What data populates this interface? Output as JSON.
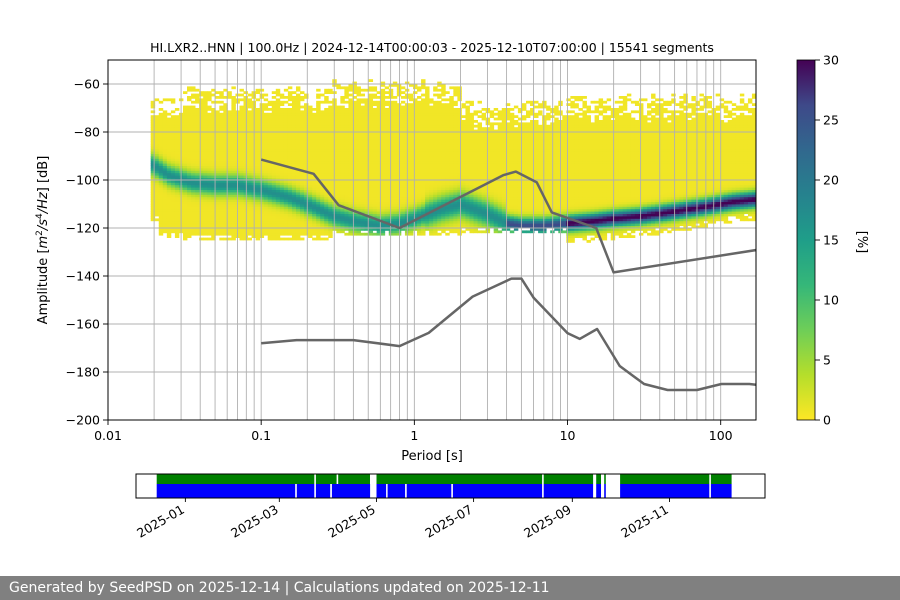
{
  "chart_data": [
    {
      "type": "heatmap",
      "title": "HI.LXR2..HNN | 100.0Hz | 2024-12-14T00:00:03 - 2025-12-10T07:00:00 | 15541 segments",
      "xlabel": "Period [s]",
      "ylabel_parts": [
        "Amplitude [",
        "m",
        "2",
        "/s",
        "4",
        "/Hz",
        "] [dB]"
      ],
      "x_scale": "log",
      "xlim": [
        0.01,
        170
      ],
      "ylim": [
        -200,
        -50
      ],
      "xticks": [
        {
          "value": 0.01,
          "label": "0.01"
        },
        {
          "value": 0.1,
          "label": "0.1"
        },
        {
          "value": 1,
          "label": "1"
        },
        {
          "value": 10,
          "label": "10"
        },
        {
          "value": 100,
          "label": "100"
        }
      ],
      "yticks": [
        -60,
        -80,
        -100,
        -120,
        -140,
        -160,
        -180,
        -200
      ],
      "vertical_grid_periods": [
        0.02,
        0.03,
        0.04,
        0.05,
        0.06,
        0.07,
        0.08,
        0.09,
        0.1,
        0.2,
        0.3,
        0.4,
        0.5,
        0.6,
        0.7,
        0.8,
        0.9,
        1,
        2,
        3,
        4,
        5,
        6,
        7,
        8,
        9,
        10,
        20,
        30,
        40,
        50,
        60,
        70,
        80,
        90,
        100
      ],
      "horizontal_grid_db": [
        -60,
        -80,
        -100,
        -120,
        -140,
        -160,
        -180
      ],
      "grid": true,
      "colormap": "viridis_r",
      "colorbar": {
        "min": 0,
        "max": 30,
        "ticks": [
          0,
          5,
          10,
          15,
          20,
          25,
          30
        ],
        "label": "[%]"
      },
      "psd_mode": {
        "period": [
          0.019,
          0.025,
          0.035,
          0.05,
          0.07,
          0.1,
          0.15,
          0.2,
          0.3,
          0.4,
          0.6,
          0.8,
          1.0,
          1.5,
          2,
          3,
          4,
          5,
          7,
          10,
          15,
          20,
          30,
          50,
          80,
          120,
          170
        ],
        "db": [
          -93,
          -98,
          -101,
          -102,
          -102,
          -104,
          -107,
          -110,
          -115,
          -117,
          -119,
          -118,
          -116,
          -112,
          -110,
          -114,
          -118,
          -119,
          -119,
          -118,
          -117,
          -116,
          -115,
          -113,
          -111,
          -109,
          -108
        ]
      },
      "series": [
        {
          "role": "high-noise-model",
          "period": [
            0.1,
            0.22,
            0.32,
            0.8,
            3.8,
            4.6,
            6.3,
            7.9,
            15.4,
            20,
            354.8
          ],
          "db": [
            -91.5,
            -97.4,
            -110.5,
            -120,
            -98,
            -96.5,
            -101,
            -113.5,
            -120,
            -138.5,
            -126
          ]
        },
        {
          "role": "low-noise-model",
          "period": [
            0.1,
            0.17,
            0.4,
            0.8,
            1.24,
            2.4,
            4.3,
            5.0,
            6.0,
            10.0,
            12.0,
            15.6,
            21.9,
            31.6,
            45.0,
            70.0,
            101.0,
            154.0,
            328.0
          ],
          "db": [
            -168,
            -166.7,
            -166.7,
            -169.2,
            -163.7,
            -148.6,
            -141.1,
            -141.1,
            -149,
            -163.8,
            -166.2,
            -162.1,
            -177.5,
            -185,
            -187.5,
            -187.5,
            -185,
            -185,
            -187.5
          ]
        }
      ]
    },
    {
      "type": "timeline",
      "xlim": [
        "2024-12-01",
        "2025-12-31"
      ],
      "xticks": [
        "2025-01",
        "2025-03",
        "2025-05",
        "2025-07",
        "2025-09",
        "2025-11"
      ],
      "rows": [
        {
          "role": "top-row",
          "color": "#008000",
          "spans": [
            [
              "2024-12-14",
              "2025-03-23"
            ],
            [
              "2025-03-24",
              "2025-04-06"
            ],
            [
              "2025-04-07",
              "2025-04-27"
            ],
            [
              "2025-05-01",
              "2025-08-13"
            ],
            [
              "2025-08-14",
              "2025-09-14"
            ],
            [
              "2025-09-16",
              "2025-09-19"
            ],
            [
              "2025-09-21",
              "2025-09-22"
            ],
            [
              "2025-10-01",
              "2025-11-26"
            ],
            [
              "2025-11-27",
              "2025-12-10"
            ]
          ]
        },
        {
          "role": "bottom-row",
          "color": "#0000ff",
          "spans": [
            [
              "2024-12-14",
              "2025-03-11"
            ],
            [
              "2025-03-12",
              "2025-03-23"
            ],
            [
              "2025-03-24",
              "2025-04-02"
            ],
            [
              "2025-04-03",
              "2025-04-27"
            ],
            [
              "2025-05-01",
              "2025-05-07"
            ],
            [
              "2025-05-08",
              "2025-05-19"
            ],
            [
              "2025-05-20",
              "2025-06-17"
            ],
            [
              "2025-06-18",
              "2025-08-13"
            ],
            [
              "2025-08-14",
              "2025-09-14"
            ],
            [
              "2025-09-16",
              "2025-09-19"
            ],
            [
              "2025-09-21",
              "2025-09-22"
            ],
            [
              "2025-10-01",
              "2025-11-26"
            ],
            [
              "2025-11-27",
              "2025-12-10"
            ]
          ]
        }
      ]
    }
  ],
  "footer": {
    "text": "Generated by SeedPSD on 2025-12-14 | Calculations updated on 2025-12-11"
  }
}
